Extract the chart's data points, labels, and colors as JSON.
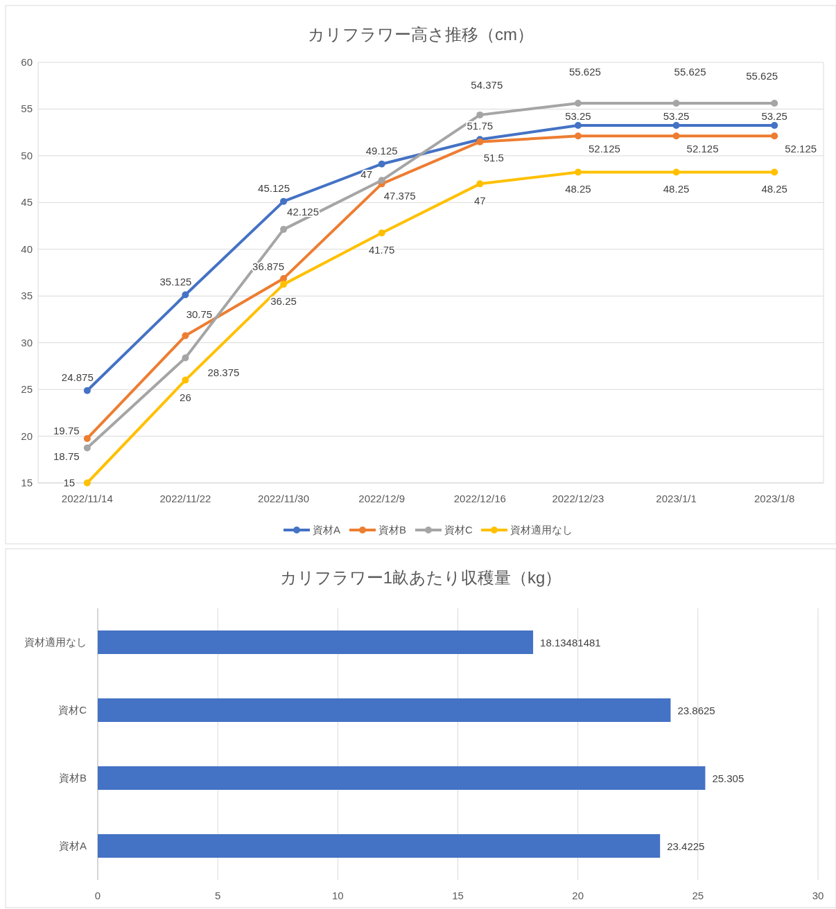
{
  "chart_data": [
    {
      "type": "line",
      "title": "カリフラワー高さ推移（cm）",
      "categories": [
        "2022/11/14",
        "2022/11/22",
        "2022/11/30",
        "2022/12/9",
        "2022/12/16",
        "2022/12/23",
        "2023/1/1",
        "2023/1/8"
      ],
      "series": [
        {
          "name": "資材A",
          "color": "#4472c4",
          "values": [
            24.875,
            35.125,
            45.125,
            49.125,
            51.75,
            53.25,
            53.25,
            53.25
          ]
        },
        {
          "name": "資材B",
          "color": "#ed7d31",
          "values": [
            19.75,
            30.75,
            36.875,
            47,
            51.5,
            52.125,
            52.125,
            52.125
          ]
        },
        {
          "name": "資材C",
          "color": "#a5a5a5",
          "values": [
            18.75,
            28.375,
            42.125,
            47.375,
            54.375,
            55.625,
            55.625,
            55.625
          ]
        },
        {
          "name": "資材適用なし",
          "color": "#ffc000",
          "values": [
            15,
            26,
            36.25,
            41.75,
            47,
            48.25,
            48.25,
            48.25
          ]
        }
      ],
      "ylim": [
        15,
        60
      ],
      "yticks": [
        15,
        20,
        25,
        30,
        35,
        40,
        45,
        50,
        55,
        60
      ],
      "grid": "y",
      "legend": "bottom",
      "marker": "circle",
      "data_labels": true
    },
    {
      "type": "bar",
      "orientation": "horizontal",
      "title": "カリフラワー1畝あたり収穫量（kg）",
      "categories": [
        "資材適用なし",
        "資材C",
        "資材B",
        "資材A"
      ],
      "values": [
        18.13481481,
        23.8625,
        25.305,
        23.4225
      ],
      "color": "#4472c4",
      "xlim": [
        0,
        30
      ],
      "xticks": [
        0,
        5,
        10,
        15,
        20,
        25,
        30
      ],
      "grid": "x",
      "data_labels": true
    }
  ]
}
